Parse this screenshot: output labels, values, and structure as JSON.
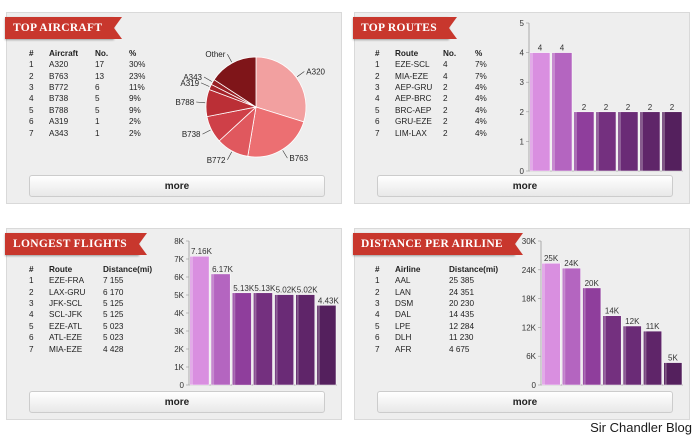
{
  "panels": {
    "aircraft": {
      "title": "TOP AIRCRAFT",
      "headers": [
        "#",
        "Aircraft",
        "No.",
        "%"
      ],
      "rows": [
        [
          "1",
          "A320",
          "17",
          "30%"
        ],
        [
          "2",
          "B763",
          "13",
          "23%"
        ],
        [
          "3",
          "B772",
          "6",
          "11%"
        ],
        [
          "4",
          "B738",
          "5",
          "9%"
        ],
        [
          "5",
          "B788",
          "5",
          "9%"
        ],
        [
          "6",
          "A319",
          "1",
          "2%"
        ],
        [
          "7",
          "A343",
          "1",
          "2%"
        ]
      ],
      "more": "more"
    },
    "routes": {
      "title": "TOP ROUTES",
      "headers": [
        "#",
        "Route",
        "No.",
        "%"
      ],
      "rows": [
        [
          "1",
          "EZE-SCL",
          "4",
          "7%"
        ],
        [
          "2",
          "MIA-EZE",
          "4",
          "7%"
        ],
        [
          "3",
          "AEP-GRU",
          "2",
          "4%"
        ],
        [
          "4",
          "AEP-BRC",
          "2",
          "4%"
        ],
        [
          "5",
          "BRC-AEP",
          "2",
          "4%"
        ],
        [
          "6",
          "GRU-EZE",
          "2",
          "4%"
        ],
        [
          "7",
          "LIM-LAX",
          "2",
          "4%"
        ]
      ],
      "more": "more"
    },
    "flights": {
      "title": "LONGEST FLIGHTS",
      "headers": [
        "#",
        "Route",
        "Distance(mi)"
      ],
      "rows": [
        [
          "1",
          "EZE-FRA",
          "7 155"
        ],
        [
          "2",
          "LAX-GRU",
          "6 170"
        ],
        [
          "3",
          "JFK-SCL",
          "5 125"
        ],
        [
          "4",
          "SCL-JFK",
          "5 125"
        ],
        [
          "5",
          "EZE-ATL",
          "5 023"
        ],
        [
          "6",
          "ATL-EZE",
          "5 023"
        ],
        [
          "7",
          "MIA-EZE",
          "4 428"
        ]
      ],
      "more": "more"
    },
    "airlines": {
      "title": "DISTANCE PER AIRLINE",
      "headers": [
        "#",
        "Airline",
        "Distance(mi)"
      ],
      "rows": [
        [
          "1",
          "AAL",
          "25 385"
        ],
        [
          "2",
          "LAN",
          "24 351"
        ],
        [
          "3",
          "DSM",
          "20 230"
        ],
        [
          "4",
          "DAL",
          "14 435"
        ],
        [
          "5",
          "LPE",
          "12 284"
        ],
        [
          "6",
          "DLH",
          "11 230"
        ],
        [
          "7",
          "AFR",
          "4 675"
        ]
      ],
      "more": "more"
    }
  },
  "watermark": "Sir Chandler Blog",
  "colors": {
    "ribbon": "#c8372d",
    "panel": "#eeeeee",
    "pie_slices": [
      "#f2a0a0",
      "#ec6f72",
      "#e0585e",
      "#cf4048",
      "#bb2f36",
      "#a5232a",
      "#981f24",
      "#7f1519"
    ],
    "bar_gradient": [
      "#d98fe0",
      "#b465c0",
      "#8f3e9c",
      "#74307f",
      "#6a2b76",
      "#5f2569",
      "#54205d"
    ]
  },
  "chart_data": [
    {
      "type": "pie",
      "categories": [
        "A320",
        "B763",
        "B772",
        "B738",
        "B788",
        "A319",
        "A343",
        "Other"
      ],
      "values": [
        17,
        13,
        6,
        5,
        5,
        1,
        1,
        9
      ]
    },
    {
      "type": "bar",
      "categories": [
        "EZE-SCL",
        "MIA-EZE",
        "AEP-GRU",
        "AEP-BRC",
        "BRC-AEP",
        "GRU-EZE",
        "LIM-LAX"
      ],
      "values": [
        4,
        4,
        2,
        2,
        2,
        2,
        2
      ],
      "value_labels": [
        "4",
        "4",
        "2",
        "2",
        "2",
        "2",
        "2"
      ],
      "ylim": [
        0,
        5
      ],
      "yticks": [
        "0",
        "1",
        "2",
        "3",
        "4",
        "5"
      ]
    },
    {
      "type": "bar",
      "categories": [
        "EZE-FRA",
        "LAX-GRU",
        "JFK-SCL",
        "SCL-JFK",
        "EZE-ATL",
        "ATL-EZE",
        "MIA-EZE"
      ],
      "values": [
        7155,
        6170,
        5125,
        5125,
        5023,
        5023,
        4428
      ],
      "value_labels": [
        "7.16K",
        "6.17K",
        "5.13K",
        "5.13K",
        "5.02K",
        "5.02K",
        "4.43K"
      ],
      "ylim": [
        0,
        8000
      ],
      "yticks": [
        "0",
        "1K",
        "2K",
        "3K",
        "4K",
        "5K",
        "6K",
        "7K",
        "8K"
      ]
    },
    {
      "type": "bar",
      "categories": [
        "AAL",
        "LAN",
        "DSM",
        "DAL",
        "LPE",
        "DLH",
        "AFR"
      ],
      "values": [
        25385,
        24351,
        20230,
        14435,
        12284,
        11230,
        4675
      ],
      "value_labels": [
        "25K",
        "24K",
        "20K",
        "14K",
        "12K",
        "11K",
        "5K"
      ],
      "ylim": [
        0,
        30000
      ],
      "yticks": [
        "0",
        "6K",
        "12K",
        "18K",
        "24K",
        "30K"
      ]
    }
  ]
}
